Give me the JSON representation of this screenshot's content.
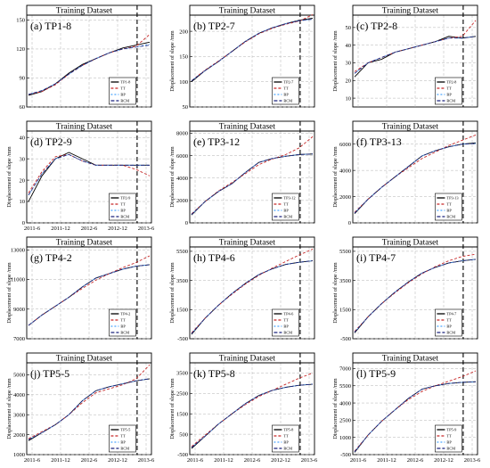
{
  "chart_data": [
    {
      "type": "line",
      "label": "(a)  TP1-8",
      "band_title": "Training Dataset",
      "ylabel": "",
      "y_ticks": [
        "60",
        "90",
        "120",
        "150"
      ],
      "ylim": [
        60,
        155
      ],
      "x_ticks": [],
      "series": [
        {
          "name": "TP1-8",
          "values": [
            72,
            76,
            84,
            95,
            104,
            110,
            116,
            121,
            124,
            127
          ]
        },
        {
          "name": "TT",
          "values": [
            73,
            76,
            83,
            94,
            103,
            110,
            116,
            120,
            123,
            135
          ]
        },
        {
          "name": "BP",
          "values": [
            73,
            77,
            84,
            94,
            103,
            110,
            116,
            120,
            122,
            125
          ]
        },
        {
          "name": "RCM",
          "values": [
            73,
            77,
            84,
            94,
            103,
            110,
            116,
            120,
            122,
            124
          ]
        }
      ]
    },
    {
      "type": "line",
      "label": "(b)  TP2-7",
      "band_title": "Training Dataset",
      "ylabel": "Displacement of slope /mm",
      "y_ticks": [
        "50",
        "100",
        "150",
        "200"
      ],
      "ylim": [
        50,
        232
      ],
      "x_ticks": [],
      "series": [
        {
          "name": "TP2-7",
          "values": [
            100,
            122,
            140,
            160,
            180,
            196,
            207,
            215,
            222,
            226
          ]
        },
        {
          "name": "TT",
          "values": [
            102,
            123,
            141,
            160,
            179,
            195,
            206,
            214,
            220,
            233
          ]
        },
        {
          "name": "BP",
          "values": [
            102,
            122,
            140,
            160,
            180,
            196,
            207,
            215,
            221,
            224
          ]
        },
        {
          "name": "RCM",
          "values": [
            102,
            122,
            140,
            160,
            180,
            196,
            207,
            215,
            221,
            224
          ]
        }
      ]
    },
    {
      "type": "line",
      "label": "(c)  TP2-8",
      "band_title": "Training Dataset",
      "ylabel": "Displacement of slope /mm",
      "y_ticks": [
        "10",
        "20",
        "30",
        "40",
        "50"
      ],
      "ylim": [
        5,
        57
      ],
      "x_ticks": [],
      "series": [
        {
          "name": "TP2-8",
          "values": [
            22,
            30,
            32,
            36,
            38,
            40,
            42,
            45,
            44,
            45
          ]
        },
        {
          "name": "TT",
          "values": [
            25,
            30,
            33,
            36,
            38,
            40,
            42,
            44,
            45,
            54
          ]
        },
        {
          "name": "BP",
          "values": [
            24,
            30,
            33,
            36,
            38,
            40,
            42,
            44,
            44,
            45
          ]
        },
        {
          "name": "RCM",
          "values": [
            24,
            30,
            33,
            36,
            38,
            40,
            42,
            44,
            44,
            45
          ]
        }
      ]
    },
    {
      "type": "line",
      "label": "(d)  TP2-9",
      "band_title": "Training Dataset",
      "ylabel": "Displacement of slope /mm",
      "y_ticks": [
        "0",
        "10",
        "20",
        "30",
        "40"
      ],
      "ylim": [
        0,
        43
      ],
      "x_ticks": [
        "2011-6",
        "2011-12",
        "2012-6",
        "2012-12",
        "2013-6"
      ],
      "series": [
        {
          "name": "TP2-9",
          "values": [
            10,
            22,
            30,
            33,
            30,
            27,
            27,
            27,
            27,
            27
          ]
        },
        {
          "name": "TT",
          "values": [
            14,
            24,
            31,
            32,
            29,
            27,
            27,
            27,
            25,
            22
          ]
        },
        {
          "name": "BP",
          "values": [
            13,
            23,
            30,
            32,
            29,
            27,
            27,
            27,
            27,
            27
          ]
        },
        {
          "name": "RCM",
          "values": [
            13,
            23,
            30,
            32,
            29,
            27,
            27,
            27,
            27,
            27
          ]
        }
      ]
    },
    {
      "type": "line",
      "label": "(e)  TP3-12",
      "band_title": "Training Dataset",
      "ylabel": "Displacement of slope /mm",
      "y_ticks": [
        "0",
        "2000",
        "4000",
        "6000",
        "8000"
      ],
      "ylim": [
        0,
        8200
      ],
      "x_ticks": [],
      "series": [
        {
          "name": "TP3-12",
          "values": [
            700,
            1900,
            2800,
            3500,
            4500,
            5400,
            5750,
            5950,
            6100,
            6150
          ]
        },
        {
          "name": "TT",
          "values": [
            800,
            1900,
            2850,
            3600,
            4400,
            5200,
            5700,
            6100,
            6700,
            7700
          ]
        },
        {
          "name": "BP",
          "values": [
            750,
            1900,
            2800,
            3500,
            4500,
            5400,
            5750,
            5950,
            6100,
            6150
          ]
        },
        {
          "name": "RCM",
          "values": [
            750,
            1900,
            2800,
            3500,
            4500,
            5400,
            5750,
            5950,
            6100,
            6150
          ]
        }
      ]
    },
    {
      "type": "line",
      "label": "(f)  TP3-13",
      "band_title": "Training Dataset",
      "ylabel": "Displacement of slope /mm",
      "y_ticks": [
        "0",
        "2000",
        "4000",
        "6000"
      ],
      "ylim": [
        0,
        7000
      ],
      "x_ticks": [],
      "series": [
        {
          "name": "TP3-13",
          "values": [
            700,
            1800,
            2700,
            3500,
            4300,
            5100,
            5500,
            5800,
            6000,
            6100
          ]
        },
        {
          "name": "TT",
          "values": [
            800,
            1800,
            2700,
            3500,
            4200,
            4900,
            5400,
            5900,
            6300,
            6700
          ]
        },
        {
          "name": "BP",
          "values": [
            750,
            1800,
            2700,
            3500,
            4300,
            5100,
            5500,
            5800,
            6000,
            6050
          ]
        },
        {
          "name": "RCM",
          "values": [
            750,
            1800,
            2700,
            3500,
            4300,
            5100,
            5500,
            5800,
            6000,
            6050
          ]
        }
      ]
    },
    {
      "type": "line",
      "label": "(g)  TP4-2",
      "band_title": "Training Dataset",
      "ylabel": "Displacement of slope /mm",
      "y_ticks": [
        "7000",
        "9000",
        "11000",
        "13000"
      ],
      "ylim": [
        7000,
        13200
      ],
      "x_ticks": [],
      "series": [
        {
          "name": "TP4-2",
          "values": [
            7900,
            8600,
            9200,
            9800,
            10500,
            11100,
            11400,
            11700,
            11900,
            12000
          ]
        },
        {
          "name": "TT",
          "values": [
            7900,
            8600,
            9200,
            9800,
            10400,
            10950,
            11400,
            11800,
            12150,
            12600
          ]
        },
        {
          "name": "BP",
          "values": [
            7900,
            8600,
            9200,
            9800,
            10500,
            11100,
            11400,
            11700,
            11900,
            12000
          ]
        },
        {
          "name": "RCM",
          "values": [
            7900,
            8600,
            9200,
            9800,
            10500,
            11100,
            11400,
            11700,
            11900,
            12000
          ]
        }
      ]
    },
    {
      "type": "line",
      "label": "(h)  TP4-6",
      "band_title": "Training Dataset",
      "ylabel": "Displacement of slope /mm",
      "y_ticks": [
        "-500",
        "1500",
        "3500",
        "5500"
      ],
      "ylim": [
        -500,
        5800
      ],
      "x_ticks": [],
      "series": [
        {
          "name": "TP4-6",
          "values": [
            -200,
            900,
            1800,
            2600,
            3300,
            3900,
            4300,
            4600,
            4750,
            4850
          ]
        },
        {
          "name": "TT",
          "values": [
            -100,
            900,
            1800,
            2550,
            3250,
            3850,
            4350,
            4800,
            5250,
            5650
          ]
        },
        {
          "name": "BP",
          "values": [
            -150,
            900,
            1800,
            2600,
            3300,
            3900,
            4300,
            4600,
            4750,
            4850
          ]
        },
        {
          "name": "RCM",
          "values": [
            -150,
            900,
            1800,
            2600,
            3300,
            3900,
            4300,
            4600,
            4750,
            4850
          ]
        }
      ]
    },
    {
      "type": "line",
      "label": "(i)  TP4-7",
      "band_title": "Training Dataset",
      "ylabel": "Displacement of slope /mm",
      "y_ticks": [
        "-500",
        "1500",
        "3500",
        "5500"
      ],
      "ylim": [
        -500,
        5800
      ],
      "x_ticks": [],
      "series": [
        {
          "name": "TP4-7",
          "values": [
            -100,
            1000,
            1900,
            2700,
            3400,
            4000,
            4400,
            4700,
            4850,
            4950
          ]
        },
        {
          "name": "TT",
          "values": [
            0,
            1000,
            1900,
            2650,
            3350,
            3950,
            4450,
            4850,
            5150,
            5300
          ]
        },
        {
          "name": "BP",
          "values": [
            -50,
            1000,
            1900,
            2700,
            3400,
            4000,
            4400,
            4700,
            4850,
            4950
          ]
        },
        {
          "name": "RCM",
          "values": [
            -50,
            1000,
            1900,
            2700,
            3400,
            4000,
            4400,
            4700,
            4850,
            4950
          ]
        }
      ]
    },
    {
      "type": "line",
      "label": "(j)  TP5-5",
      "band_title": "Training Dataset",
      "ylabel": "Displacement of slope /mm",
      "y_ticks": [
        "1000",
        "2000",
        "3000",
        "4000",
        "5000"
      ],
      "ylim": [
        1000,
        5600
      ],
      "x_ticks": [
        "2011-6",
        "2011-12",
        "2012-6",
        "2012-12",
        "2013-6"
      ],
      "series": [
        {
          "name": "TP5-5",
          "values": [
            1700,
            2100,
            2500,
            3000,
            3700,
            4200,
            4400,
            4550,
            4700,
            4800
          ]
        },
        {
          "name": "TT",
          "values": [
            1800,
            2150,
            2500,
            3000,
            3600,
            4100,
            4300,
            4500,
            4800,
            5500
          ]
        },
        {
          "name": "BP",
          "values": [
            1750,
            2100,
            2500,
            3000,
            3700,
            4200,
            4400,
            4550,
            4700,
            4800
          ]
        },
        {
          "name": "RCM",
          "values": [
            1750,
            2100,
            2500,
            3000,
            3700,
            4200,
            4400,
            4550,
            4700,
            4800
          ]
        }
      ]
    },
    {
      "type": "line",
      "label": "(k)  TP5-8",
      "band_title": "Training Dataset",
      "ylabel": "Displacement of slope /mm",
      "y_ticks": [
        "-500",
        "500",
        "1500",
        "2500",
        "3500"
      ],
      "ylim": [
        -500,
        4000
      ],
      "x_ticks": [
        "2011-6",
        "2011-12",
        "2012-6",
        "2012-12",
        "2013-6"
      ],
      "series": [
        {
          "name": "TP5-8",
          "values": [
            -200,
            400,
            1000,
            1500,
            2000,
            2400,
            2650,
            2800,
            2900,
            2950
          ]
        },
        {
          "name": "TT",
          "values": [
            -100,
            450,
            1000,
            1500,
            1950,
            2350,
            2650,
            2950,
            3250,
            3500
          ]
        },
        {
          "name": "BP",
          "values": [
            -150,
            400,
            1000,
            1500,
            2000,
            2400,
            2650,
            2800,
            2900,
            2950
          ]
        },
        {
          "name": "RCM",
          "values": [
            -150,
            400,
            1000,
            1500,
            2000,
            2400,
            2650,
            2800,
            2900,
            2950
          ]
        }
      ]
    },
    {
      "type": "line",
      "label": "(l)  TP5-9",
      "band_title": "Training Dataset",
      "ylabel": "Displacement of slope /mm",
      "y_ticks": [
        "-500",
        "1000",
        "2500",
        "4000",
        "5500",
        "7000"
      ],
      "ylim": [
        -500,
        7500
      ],
      "x_ticks": [
        "2011-6",
        "2011-12",
        "2012-6",
        "2012-12",
        "2013-6"
      ],
      "series": [
        {
          "name": "TP5-9",
          "values": [
            -300,
            1200,
            2400,
            3400,
            4400,
            5200,
            5500,
            5700,
            5800,
            5850
          ]
        },
        {
          "name": "TT",
          "values": [
            -200,
            1200,
            2400,
            3400,
            4300,
            5000,
            5500,
            5900,
            6300,
            6800
          ]
        },
        {
          "name": "BP",
          "values": [
            -250,
            1200,
            2400,
            3400,
            4400,
            5200,
            5500,
            5700,
            5800,
            5850
          ]
        },
        {
          "name": "RCM",
          "values": [
            -250,
            1200,
            2400,
            3400,
            4400,
            5200,
            5500,
            5700,
            5800,
            5850
          ]
        }
      ]
    }
  ],
  "colors": {
    "measured": "#000000",
    "tt": "#c62828",
    "bp": "#4da6ff",
    "rcm": "#1a237e"
  }
}
